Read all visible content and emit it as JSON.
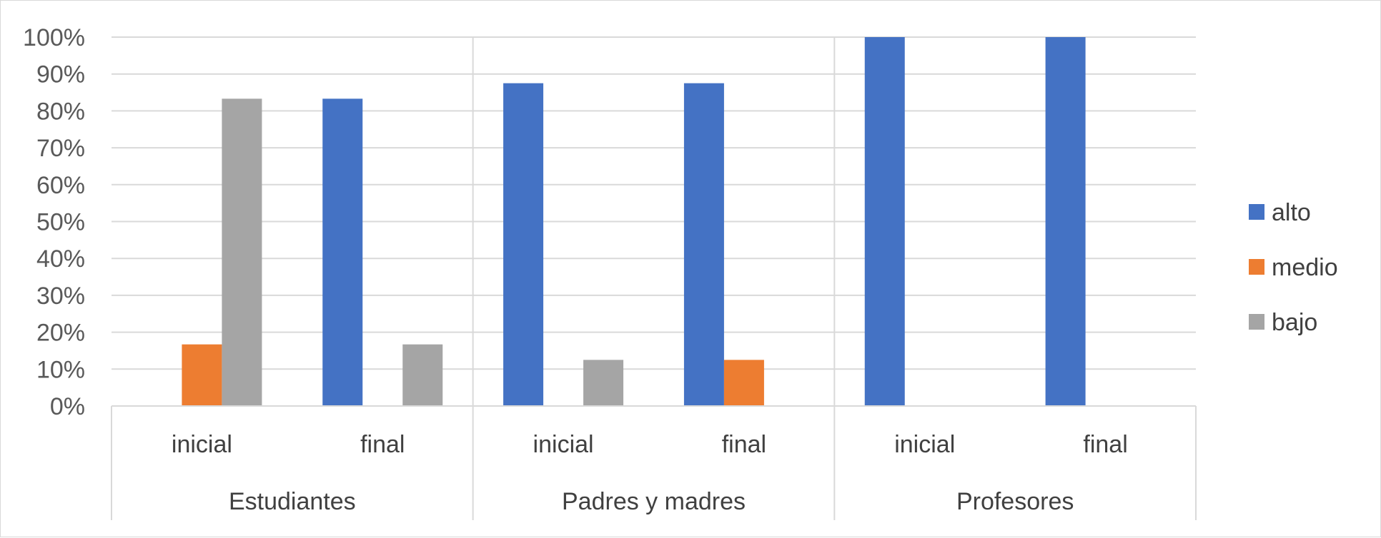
{
  "chart_data": {
    "type": "bar",
    "ylim": [
      0,
      100
    ],
    "y_ticks": [
      "0%",
      "10%",
      "20%",
      "30%",
      "40%",
      "50%",
      "60%",
      "70%",
      "80%",
      "90%",
      "100%"
    ],
    "groups": [
      {
        "label": "Estudiantes",
        "categories": [
          "inicial",
          "final"
        ]
      },
      {
        "label": "Padres y madres",
        "categories": [
          "inicial",
          "final"
        ]
      },
      {
        "label": "Profesores",
        "categories": [
          "inicial",
          "final"
        ]
      }
    ],
    "series": [
      {
        "name": "alto",
        "color": "#4472C4",
        "values": [
          0,
          83.3,
          87.5,
          87.5,
          100,
          100
        ]
      },
      {
        "name": "medio",
        "color": "#ED7D31",
        "values": [
          16.7,
          0,
          0,
          12.5,
          0,
          0
        ]
      },
      {
        "name": "bajo",
        "color": "#A5A5A5",
        "values": [
          83.3,
          16.7,
          12.5,
          0,
          0,
          0
        ]
      }
    ],
    "grid": true,
    "legend_position": "right"
  }
}
